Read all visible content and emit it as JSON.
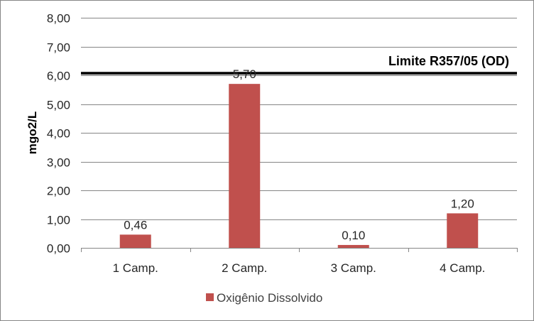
{
  "chart_data": {
    "type": "bar",
    "title": "",
    "xlabel": "",
    "ylabel": "mgo2/L",
    "categories": [
      "1 Camp.",
      "2 Camp.",
      "3 Camp.",
      "4 Camp."
    ],
    "series": [
      {
        "name": "Oxigênio Dissolvido",
        "values": [
          0.46,
          5.7,
          0.1,
          1.2
        ],
        "labels": [
          "0,46",
          "5,70",
          "0,10",
          "1,20"
        ],
        "color": "#C0504D"
      }
    ],
    "ylim": [
      0,
      8
    ],
    "yticks": [
      0,
      1,
      2,
      3,
      4,
      5,
      6,
      7,
      8
    ],
    "ytick_labels": [
      "0,00",
      "1,00",
      "2,00",
      "3,00",
      "4,00",
      "5,00",
      "6,00",
      "7,00",
      "8,00"
    ],
    "grid": true,
    "gridline_color": "#868686",
    "reference_line": {
      "value": 6.0,
      "label": "Limite R357/05 (OD)",
      "color": "#000000"
    },
    "legend": {
      "position": "bottom"
    }
  }
}
